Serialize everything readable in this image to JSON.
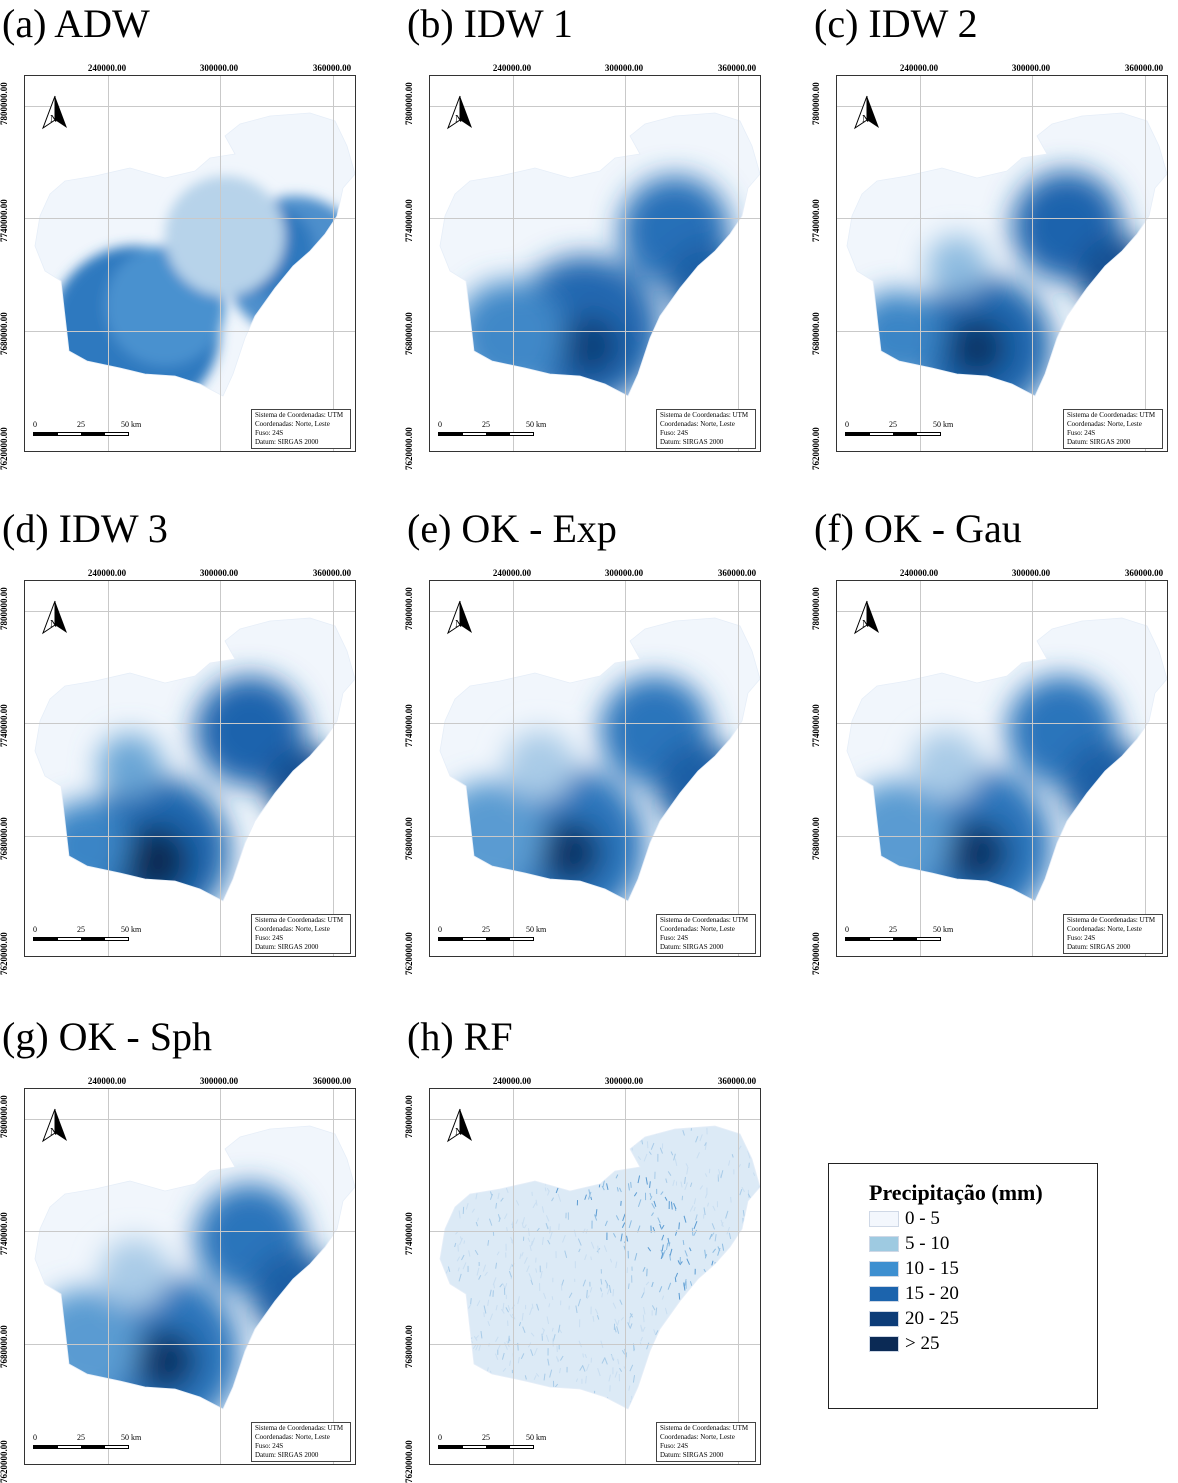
{
  "panels": [
    {
      "title": "(a) ADW",
      "style": "adw"
    },
    {
      "title": "(b) IDW 1",
      "style": "idw1"
    },
    {
      "title": "(c) IDW 2",
      "style": "idw2"
    },
    {
      "title": "(d) IDW 3",
      "style": "idw3"
    },
    {
      "title": "(e) OK - Exp",
      "style": "ok"
    },
    {
      "title": "(f) OK - Gau",
      "style": "ok"
    },
    {
      "title": "(g) OK - Sph",
      "style": "ok"
    },
    {
      "title": "(h) RF",
      "style": "rf"
    }
  ],
  "axes": {
    "x_ticks": [
      "240000.00",
      "300000.00",
      "360000.00"
    ],
    "y_ticks": [
      "7800000.00",
      "7740000.00",
      "7680000.00",
      "7620000.00"
    ]
  },
  "north_label": "N",
  "scale": {
    "labels": [
      "0",
      "25",
      "50 km"
    ]
  },
  "crs_info": [
    "Sistema de Coordenadas: UTM",
    "Coordenadas: Norte, Leste",
    "Fuso: 24S",
    "Datum: SIRGAS 2000"
  ],
  "legend": {
    "title": "Precipitação (mm)",
    "classes": [
      {
        "label": "0 - 5",
        "color": "#f3f7fd"
      },
      {
        "label": "5 - 10",
        "color": "#9ecae1"
      },
      {
        "label": "10 - 15",
        "color": "#3d8fd0"
      },
      {
        "label": "15 - 20",
        "color": "#1c64ad"
      },
      {
        "label": "20 - 25",
        "color": "#0c3c78"
      },
      {
        "label": "> 25",
        "color": "#0b2a55"
      }
    ]
  }
}
